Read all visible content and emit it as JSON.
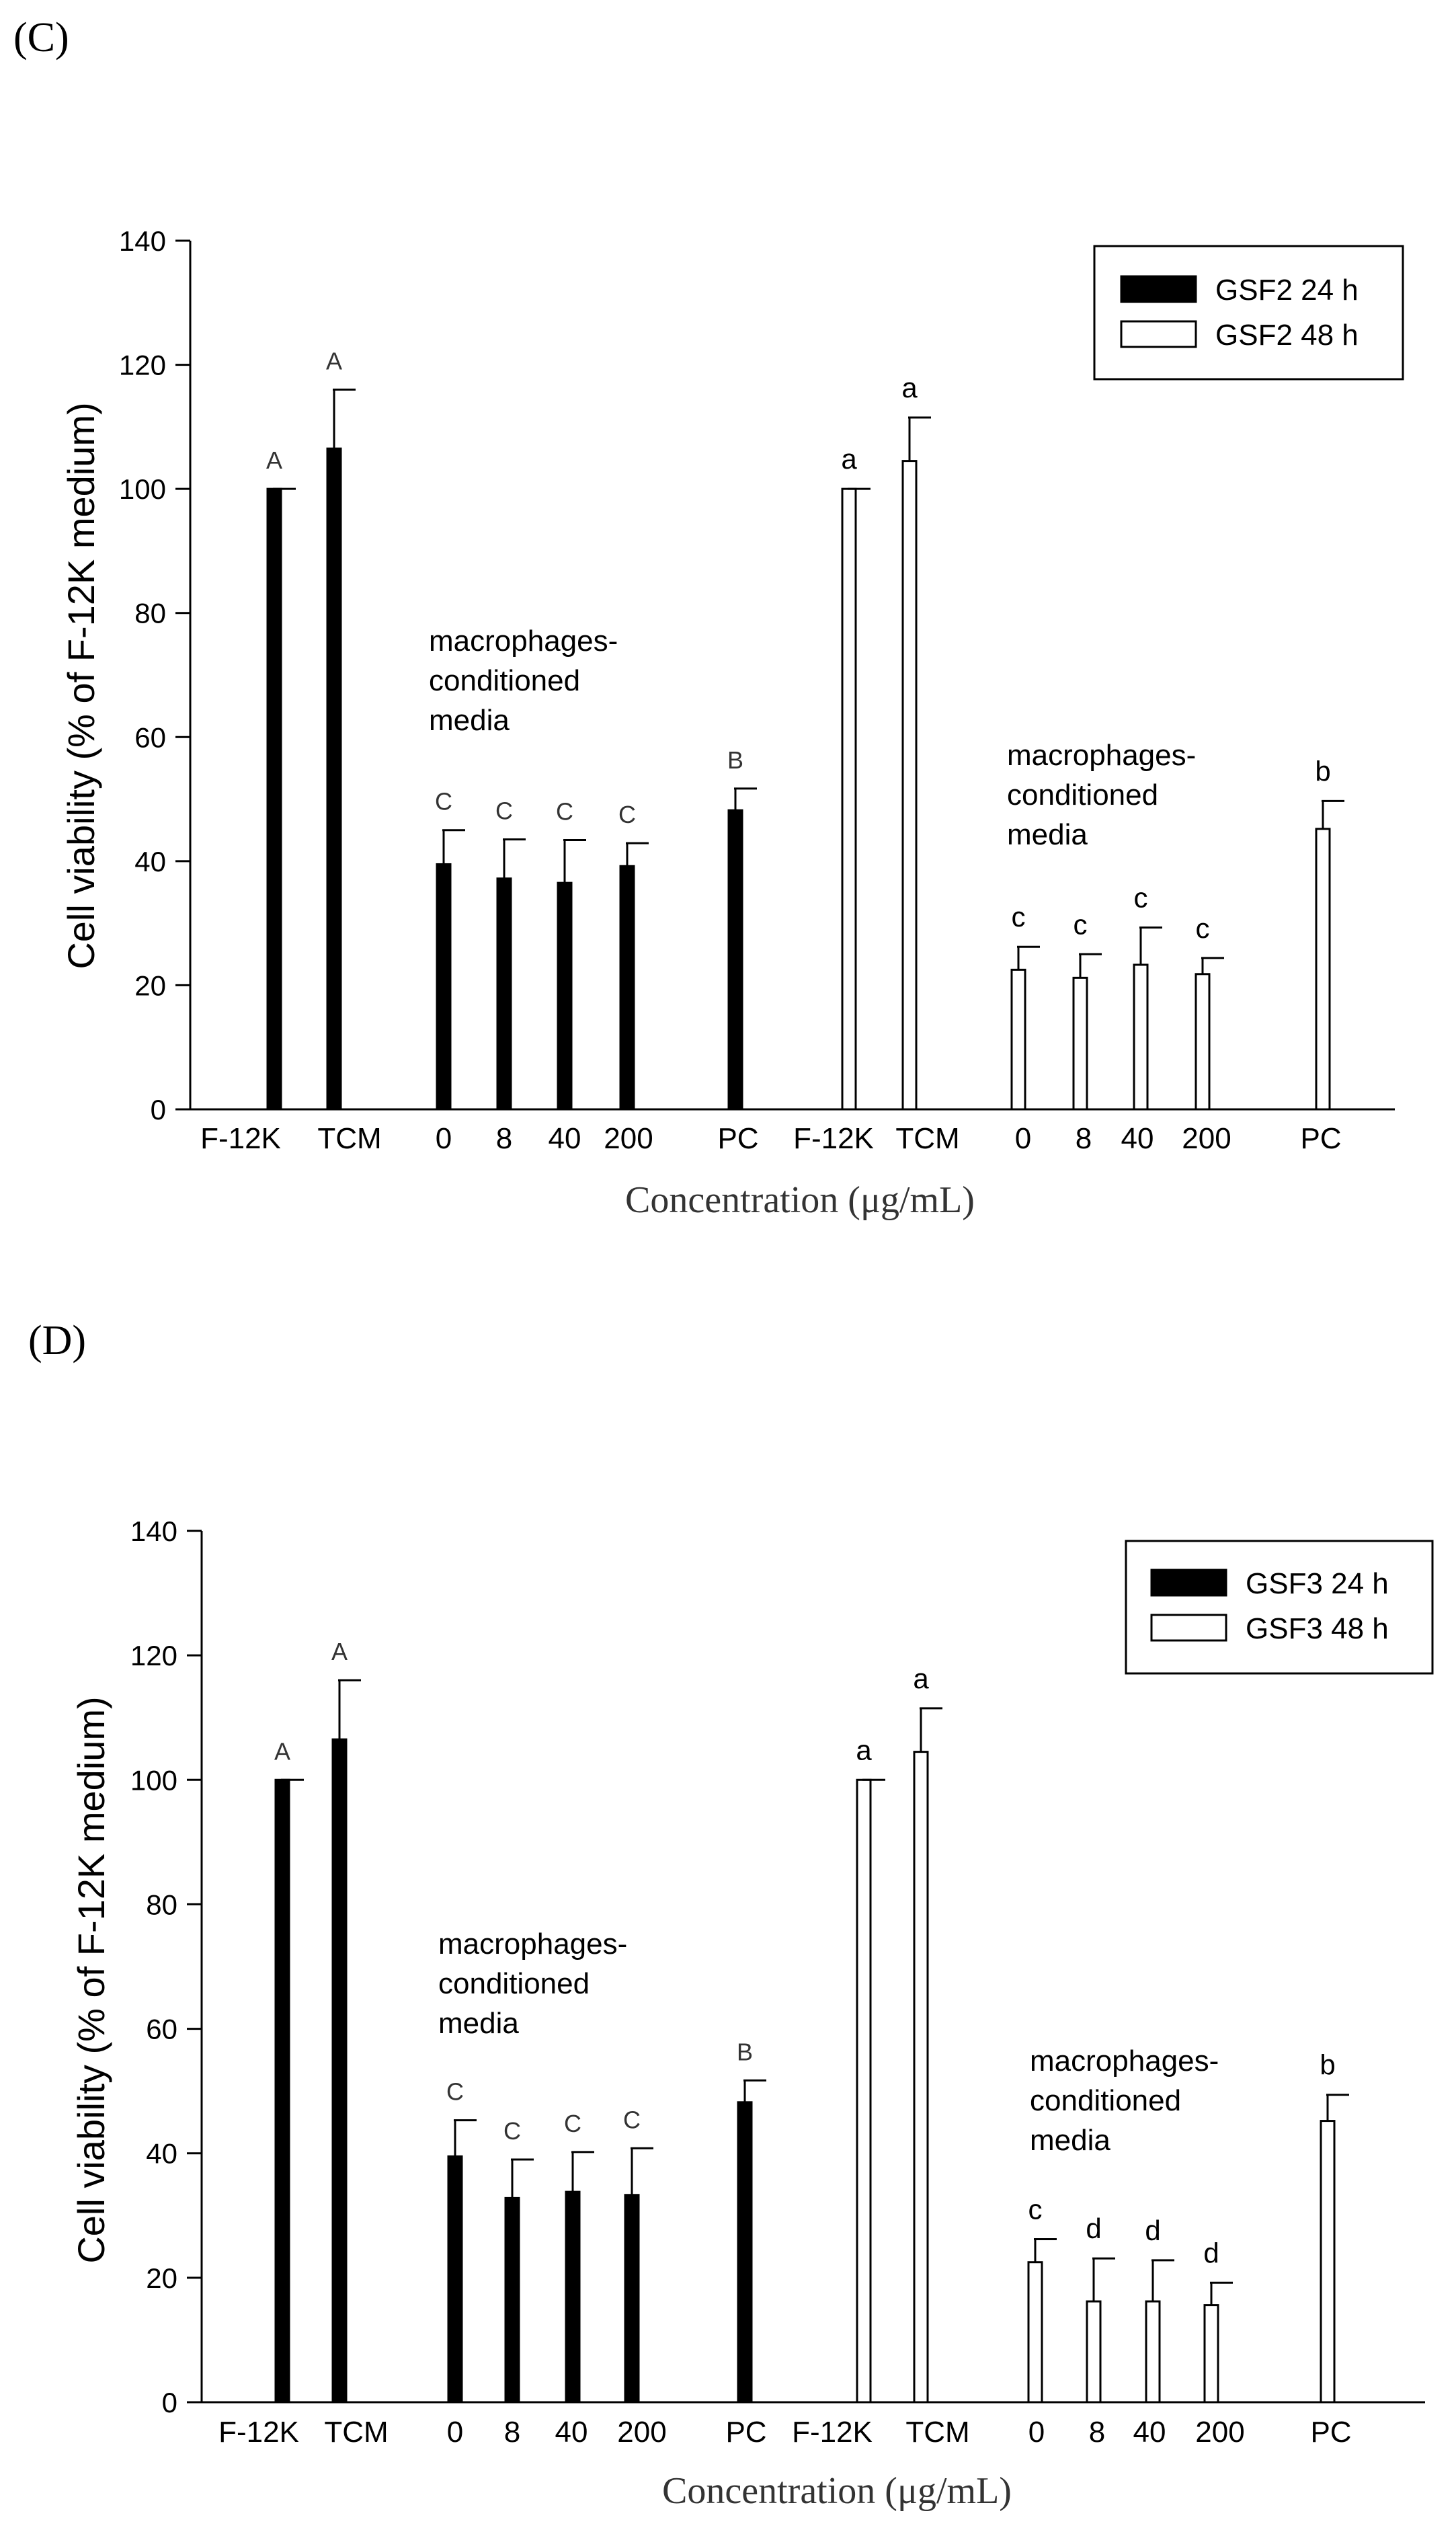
{
  "chart_data": [
    {
      "type": "bar",
      "panel_label": "(C)",
      "xlabel": "Concentration (μg/mL)",
      "ylabel": "Cell viability (% of F-12K medium)",
      "ylim": [
        0,
        140
      ],
      "yticks": [
        0,
        20,
        40,
        60,
        80,
        100,
        120,
        140
      ],
      "legend": [
        {
          "name": "GSF2 24 h",
          "fill": "#000000"
        },
        {
          "name": "GSF2 48 h",
          "fill": "#ffffff"
        }
      ],
      "annotations": [
        {
          "group": 0,
          "lines": [
            "macrophages-",
            "conditioned",
            "media"
          ]
        },
        {
          "group": 1,
          "lines": [
            "macrophages-",
            "conditioned",
            "media"
          ]
        }
      ],
      "groups": [
        {
          "series": "GSF2 24 h",
          "categories": [
            "F-12K",
            "TCM",
            "0",
            "8",
            "40",
            "200",
            "PC"
          ],
          "values": [
            100,
            106.5,
            39.5,
            37.2,
            36.5,
            39.2,
            48.2
          ],
          "errors": [
            0,
            9.5,
            5.5,
            6.3,
            6.9,
            3.7,
            3.5
          ],
          "labels": [
            "A",
            "A",
            "C",
            "C",
            "C",
            "C",
            "B"
          ]
        },
        {
          "series": "GSF2 48 h",
          "categories": [
            "F-12K",
            "TCM",
            "0",
            "8",
            "40",
            "200",
            "PC"
          ],
          "values": [
            100,
            104.5,
            22.5,
            21.2,
            23.3,
            21.8,
            45.2
          ],
          "errors": [
            0,
            7.0,
            3.7,
            3.8,
            6.0,
            2.6,
            4.5
          ],
          "labels": [
            "a",
            "a",
            "c",
            "c",
            "c",
            "c",
            "b"
          ]
        }
      ]
    },
    {
      "type": "bar",
      "panel_label": "(D)",
      "xlabel": "Concentration (μg/mL)",
      "ylabel": "Cell viability (% of F-12K medium)",
      "ylim": [
        0,
        140
      ],
      "yticks": [
        0,
        20,
        40,
        60,
        80,
        100,
        120,
        140
      ],
      "legend": [
        {
          "name": "GSF3 24 h",
          "fill": "#000000"
        },
        {
          "name": "GSF3 48 h",
          "fill": "#ffffff"
        }
      ],
      "annotations": [
        {
          "group": 0,
          "lines": [
            "macrophages-",
            "conditioned",
            "media"
          ]
        },
        {
          "group": 1,
          "lines": [
            "macrophages-",
            "conditioned",
            "media"
          ]
        }
      ],
      "groups": [
        {
          "series": "GSF3 24 h",
          "categories": [
            "F-12K",
            "TCM",
            "0",
            "8",
            "40",
            "200",
            "PC"
          ],
          "values": [
            100,
            106.5,
            39.5,
            32.8,
            33.8,
            33.3,
            48.2
          ],
          "errors": [
            0,
            9.5,
            5.8,
            6.2,
            6.4,
            7.5,
            3.5
          ],
          "labels": [
            "A",
            "A",
            "C",
            "C",
            "C",
            "C",
            "B"
          ]
        },
        {
          "series": "GSF3 48 h",
          "categories": [
            "F-12K",
            "TCM",
            "0",
            "8",
            "40",
            "200",
            "PC"
          ],
          "values": [
            100,
            104.5,
            22.5,
            16.2,
            16.2,
            15.6,
            45.2
          ],
          "errors": [
            0,
            7.0,
            3.7,
            6.9,
            6.6,
            3.6,
            4.2
          ],
          "labels": [
            "a",
            "a",
            "c",
            "d",
            "d",
            "d",
            "b"
          ]
        }
      ]
    }
  ]
}
